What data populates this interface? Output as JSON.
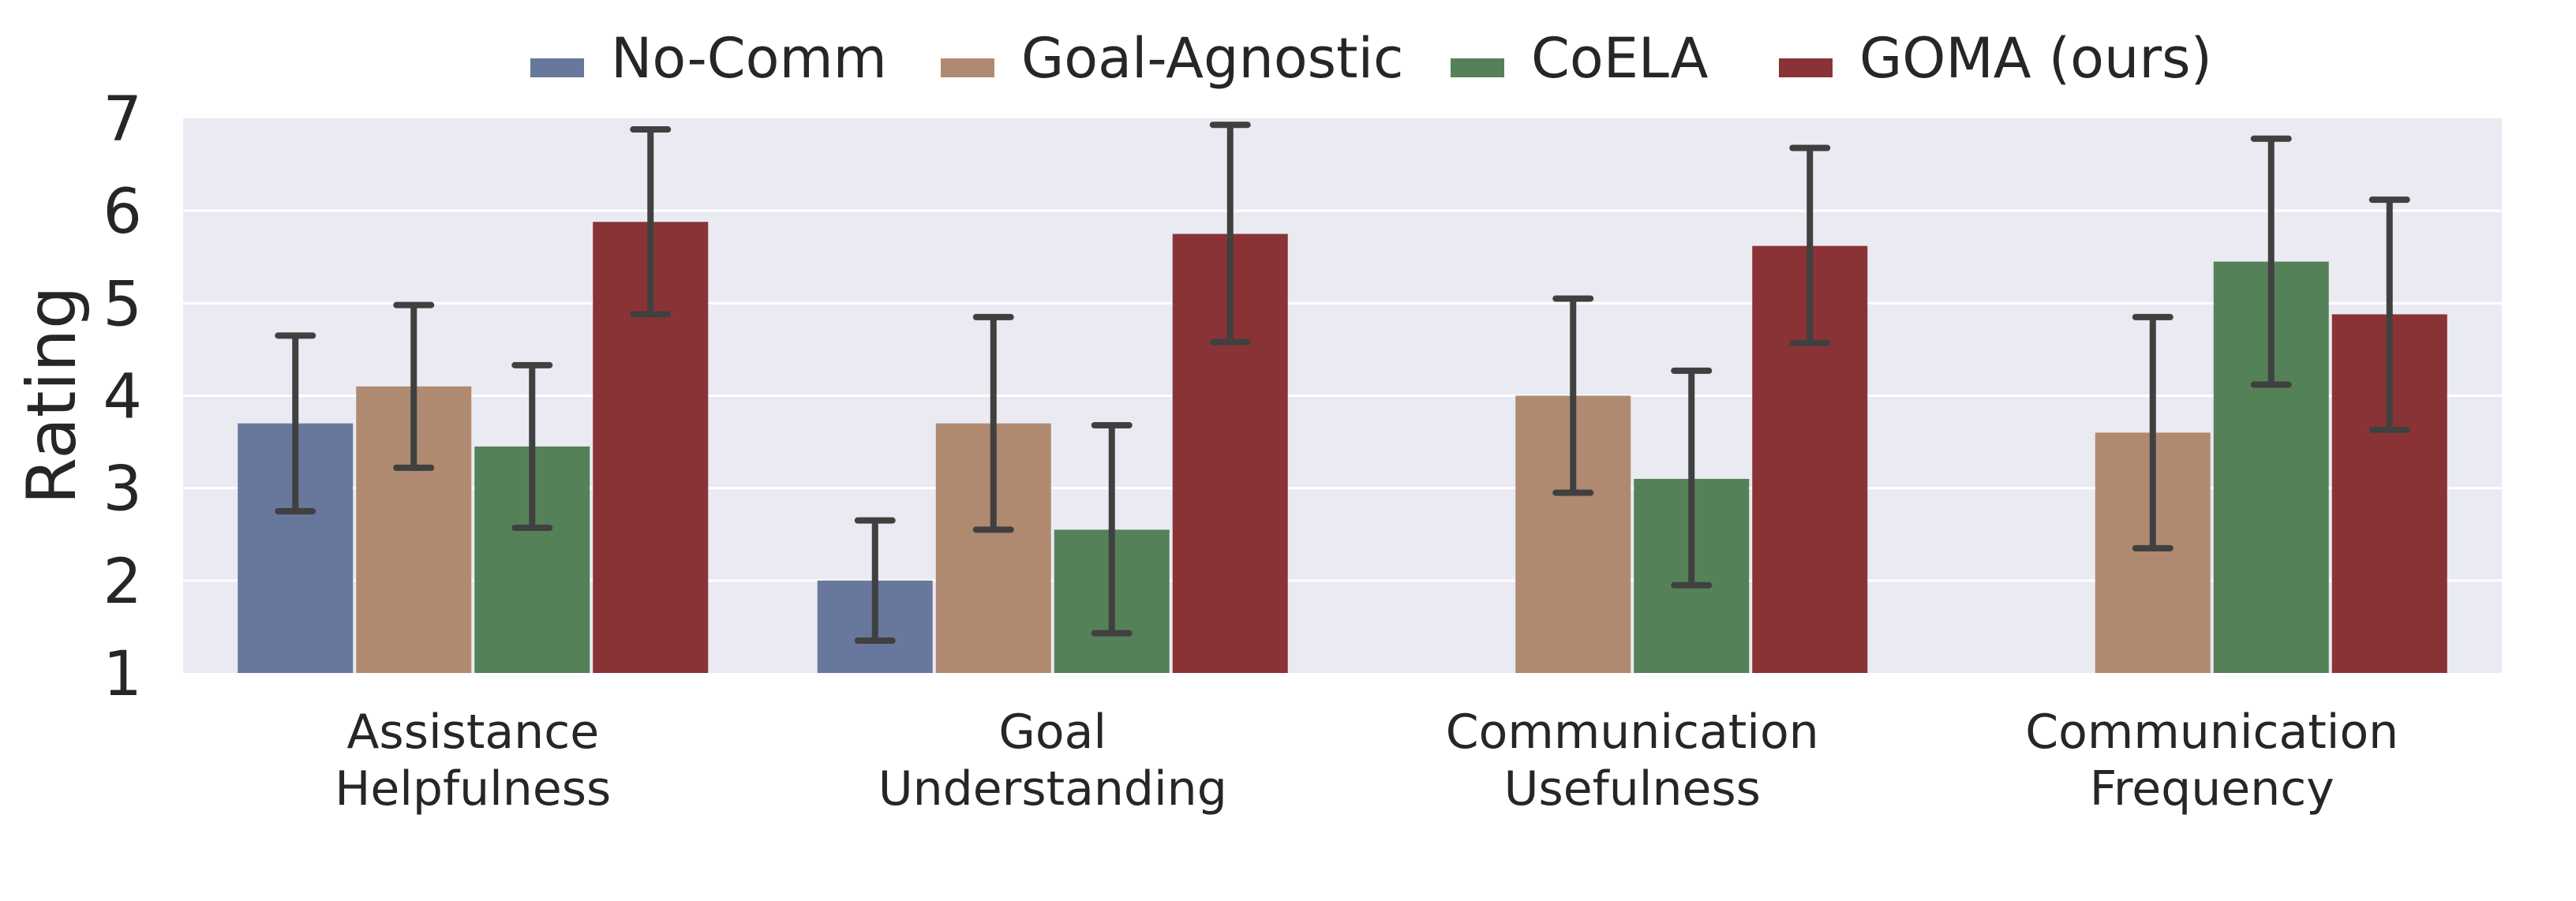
{
  "chart_data": {
    "type": "bar",
    "title": "",
    "xlabel": "",
    "ylabel": "Rating",
    "ylim": [
      1,
      7
    ],
    "yticks": [
      "1",
      "2",
      "3",
      "4",
      "5",
      "6",
      "7"
    ],
    "grid": true,
    "legend_position": "top-center",
    "categories": [
      [
        "Assistance",
        "Helpfulness"
      ],
      [
        "Goal",
        "Understanding"
      ],
      [
        "Communication",
        "Usefulness"
      ],
      [
        "Communication",
        "Frequency"
      ]
    ],
    "series": [
      {
        "name": "No-Comm",
        "color": "#68779c",
        "values": [
          3.7,
          2.0,
          null,
          null
        ],
        "err_low": [
          2.75,
          1.35,
          null,
          null
        ],
        "err_high": [
          4.65,
          2.65,
          null,
          null
        ]
      },
      {
        "name": "Goal-Agnostic",
        "color": "#b08a70",
        "values": [
          4.1,
          3.7,
          4.0,
          3.6
        ],
        "err_low": [
          3.22,
          2.55,
          2.95,
          2.35
        ],
        "err_high": [
          4.98,
          4.85,
          5.05,
          4.85
        ]
      },
      {
        "name": "CoELA",
        "color": "#558158",
        "values": [
          3.45,
          2.55,
          3.1,
          5.45
        ],
        "err_low": [
          2.57,
          1.43,
          1.95,
          4.12
        ],
        "err_high": [
          4.33,
          3.68,
          4.27,
          6.78
        ]
      },
      {
        "name": "GOMA (ours)",
        "color": "#8a3336",
        "values": [
          5.88,
          5.75,
          5.62,
          4.88
        ],
        "err_low": [
          4.88,
          4.58,
          4.57,
          3.63
        ],
        "err_high": [
          6.88,
          6.93,
          6.68,
          6.12
        ]
      }
    ],
    "styles": {
      "plot_background": "#eaeaf2",
      "grid_color": "#ffffff",
      "error_bar_color": "#404040"
    }
  }
}
